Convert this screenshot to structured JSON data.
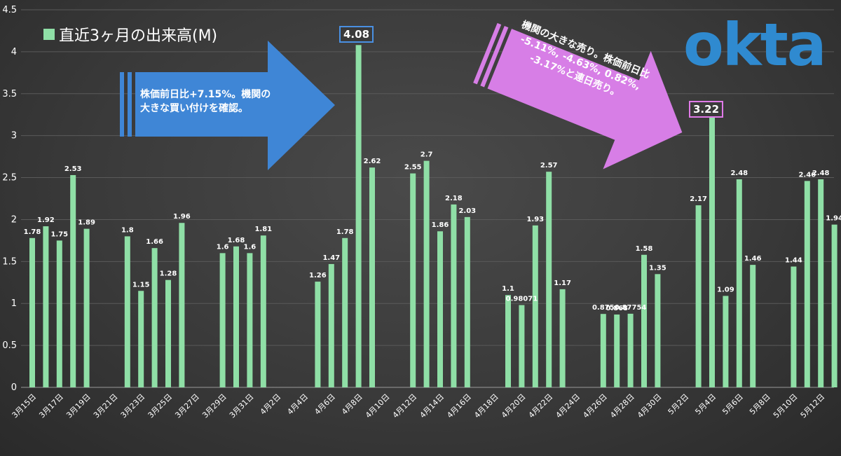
{
  "legend": {
    "label": "直近3ヶ月の出来高(M)",
    "swatch_color": "#8fdfa6"
  },
  "logo": {
    "text": "okta",
    "color": "#2f8ad0"
  },
  "annotations": {
    "buy": {
      "line1": "株価前日比+7.15%。機関の",
      "line2": "大きな買い付けを確認。",
      "color": "#3f86d6"
    },
    "sell": {
      "line1": "機関の大きな売り。株価前日比",
      "line2": "-5.11%, -4.63%, 0.82%,",
      "line3": "-3.17%と連日売り。",
      "color": "#d77ee6"
    }
  },
  "callouts": {
    "high": "4.08",
    "second": "3.22"
  },
  "chart_data": {
    "type": "bar",
    "ylim": [
      0,
      4.5
    ],
    "yticks": [
      "0",
      "0.5",
      "1",
      "1.5",
      "2",
      "2.5",
      "3",
      "3.5",
      "4",
      "4.5"
    ],
    "xticks": [
      "3月15日",
      "3月17日",
      "3月19日",
      "3月21日",
      "3月23日",
      "3月25日",
      "3月27日",
      "3月29日",
      "3月31日",
      "4月2日",
      "4月4日",
      "4月6日",
      "4月8日",
      "4月10日",
      "4月12日",
      "4月14日",
      "4月16日",
      "4月18日",
      "4月20日",
      "4月22日",
      "4月24日",
      "4月26日",
      "4月28日",
      "4月30日",
      "5月2日",
      "5月4日",
      "5月6日",
      "5月8日",
      "5月10日",
      "5月12日"
    ],
    "bar_color": "#8fdfa6",
    "bars": [
      {
        "day": 0,
        "value": 1.78,
        "label": "1.78"
      },
      {
        "day": 1,
        "value": 1.92,
        "label": "1.92"
      },
      {
        "day": 2,
        "value": 1.75,
        "label": "1.75"
      },
      {
        "day": 3,
        "value": 2.53,
        "label": "2.53"
      },
      {
        "day": 4,
        "value": 1.89,
        "label": "1.89"
      },
      {
        "day": 7,
        "value": 1.8,
        "label": "1.8"
      },
      {
        "day": 8,
        "value": 1.15,
        "label": "1.15"
      },
      {
        "day": 9,
        "value": 1.66,
        "label": "1.66"
      },
      {
        "day": 10,
        "value": 1.28,
        "label": "1.28"
      },
      {
        "day": 11,
        "value": 1.96,
        "label": "1.96"
      },
      {
        "day": 14,
        "value": 1.6,
        "label": "1.6"
      },
      {
        "day": 15,
        "value": 1.68,
        "label": "1.68"
      },
      {
        "day": 16,
        "value": 1.6,
        "label": "1.6"
      },
      {
        "day": 17,
        "value": 1.81,
        "label": "1.81"
      },
      {
        "day": 21,
        "value": 1.26,
        "label": "1.26"
      },
      {
        "day": 22,
        "value": 1.47,
        "label": "1.47"
      },
      {
        "day": 23,
        "value": 1.78,
        "label": "1.78"
      },
      {
        "day": 24,
        "value": 4.08,
        "label": ""
      },
      {
        "day": 25,
        "value": 2.62,
        "label": "2.62"
      },
      {
        "day": 28,
        "value": 2.55,
        "label": "2.55"
      },
      {
        "day": 29,
        "value": 2.7,
        "label": "2.7"
      },
      {
        "day": 30,
        "value": 1.86,
        "label": "1.86"
      },
      {
        "day": 31,
        "value": 2.18,
        "label": "2.18"
      },
      {
        "day": 32,
        "value": 2.03,
        "label": "2.03"
      },
      {
        "day": 35,
        "value": 1.1,
        "label": "1.1"
      },
      {
        "day": 36,
        "value": 0.98071,
        "label": "0.98071"
      },
      {
        "day": 37,
        "value": 1.93,
        "label": "1.93"
      },
      {
        "day": 38,
        "value": 2.57,
        "label": "2.57"
      },
      {
        "day": 39,
        "value": 1.17,
        "label": "1.17"
      },
      {
        "day": 42,
        "value": 0.875,
        "label": "0.875"
      },
      {
        "day": 43,
        "value": 0.868,
        "label": "0.868"
      },
      {
        "day": 44,
        "value": 0.87754,
        "label": "0.87754"
      },
      {
        "day": 45,
        "value": 1.58,
        "label": "1.58"
      },
      {
        "day": 46,
        "value": 1.35,
        "label": "1.35"
      },
      {
        "day": 49,
        "value": 2.17,
        "label": "2.17"
      },
      {
        "day": 50,
        "value": 3.22,
        "label": ""
      },
      {
        "day": 51,
        "value": 1.09,
        "label": "1.09"
      },
      {
        "day": 52,
        "value": 2.48,
        "label": "2.48"
      },
      {
        "day": 53,
        "value": 1.46,
        "label": "1.46"
      },
      {
        "day": 56,
        "value": 1.44,
        "label": "1.44"
      },
      {
        "day": 57,
        "value": 2.46,
        "label": "2.46"
      },
      {
        "day": 58,
        "value": 2.48,
        "label": "2.48"
      },
      {
        "day": 59,
        "value": 1.94,
        "label": "1.94"
      }
    ]
  }
}
